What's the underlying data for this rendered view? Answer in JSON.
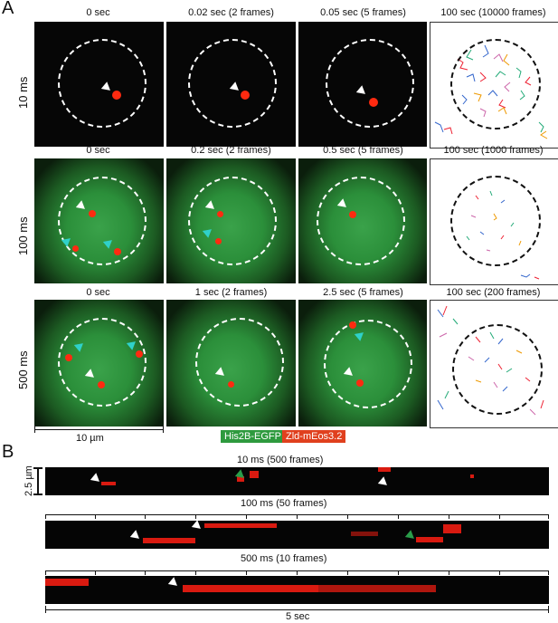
{
  "panel_a": {
    "letter": "A",
    "rows": [
      {
        "label": "10 ms",
        "titles": [
          "0 sec",
          "0.02 sec (2 frames)",
          "0.05 sec (5 frames)",
          "100 sec (10000 frames)"
        ]
      },
      {
        "label": "100 ms",
        "titles": [
          "0 sec",
          "0.2 sec (2 frames)",
          "0.5 sec (5 frames)",
          "100 sec (1000 frames)"
        ]
      },
      {
        "label": "500 ms",
        "titles": [
          "0 sec",
          "1 sec (2 frames)",
          "2.5 sec (5 frames)",
          "100 sec (200 frames)"
        ]
      }
    ],
    "scale_bar": "10 µm",
    "legend": {
      "green": "His2B-EGFP",
      "red": "Zld-mEos3.2"
    },
    "colors": {
      "green": "#2e9a3e",
      "red": "#e0401e",
      "cyan": "#2fd1c9"
    }
  },
  "panel_b": {
    "letter": "B",
    "scale_bar": "2.5 µm",
    "kymographs": [
      {
        "title": "10 ms (500 frames)"
      },
      {
        "title": "100 ms (50 frames)"
      },
      {
        "title": "500 ms (10 frames)"
      }
    ],
    "time_bar": "5 sec"
  }
}
